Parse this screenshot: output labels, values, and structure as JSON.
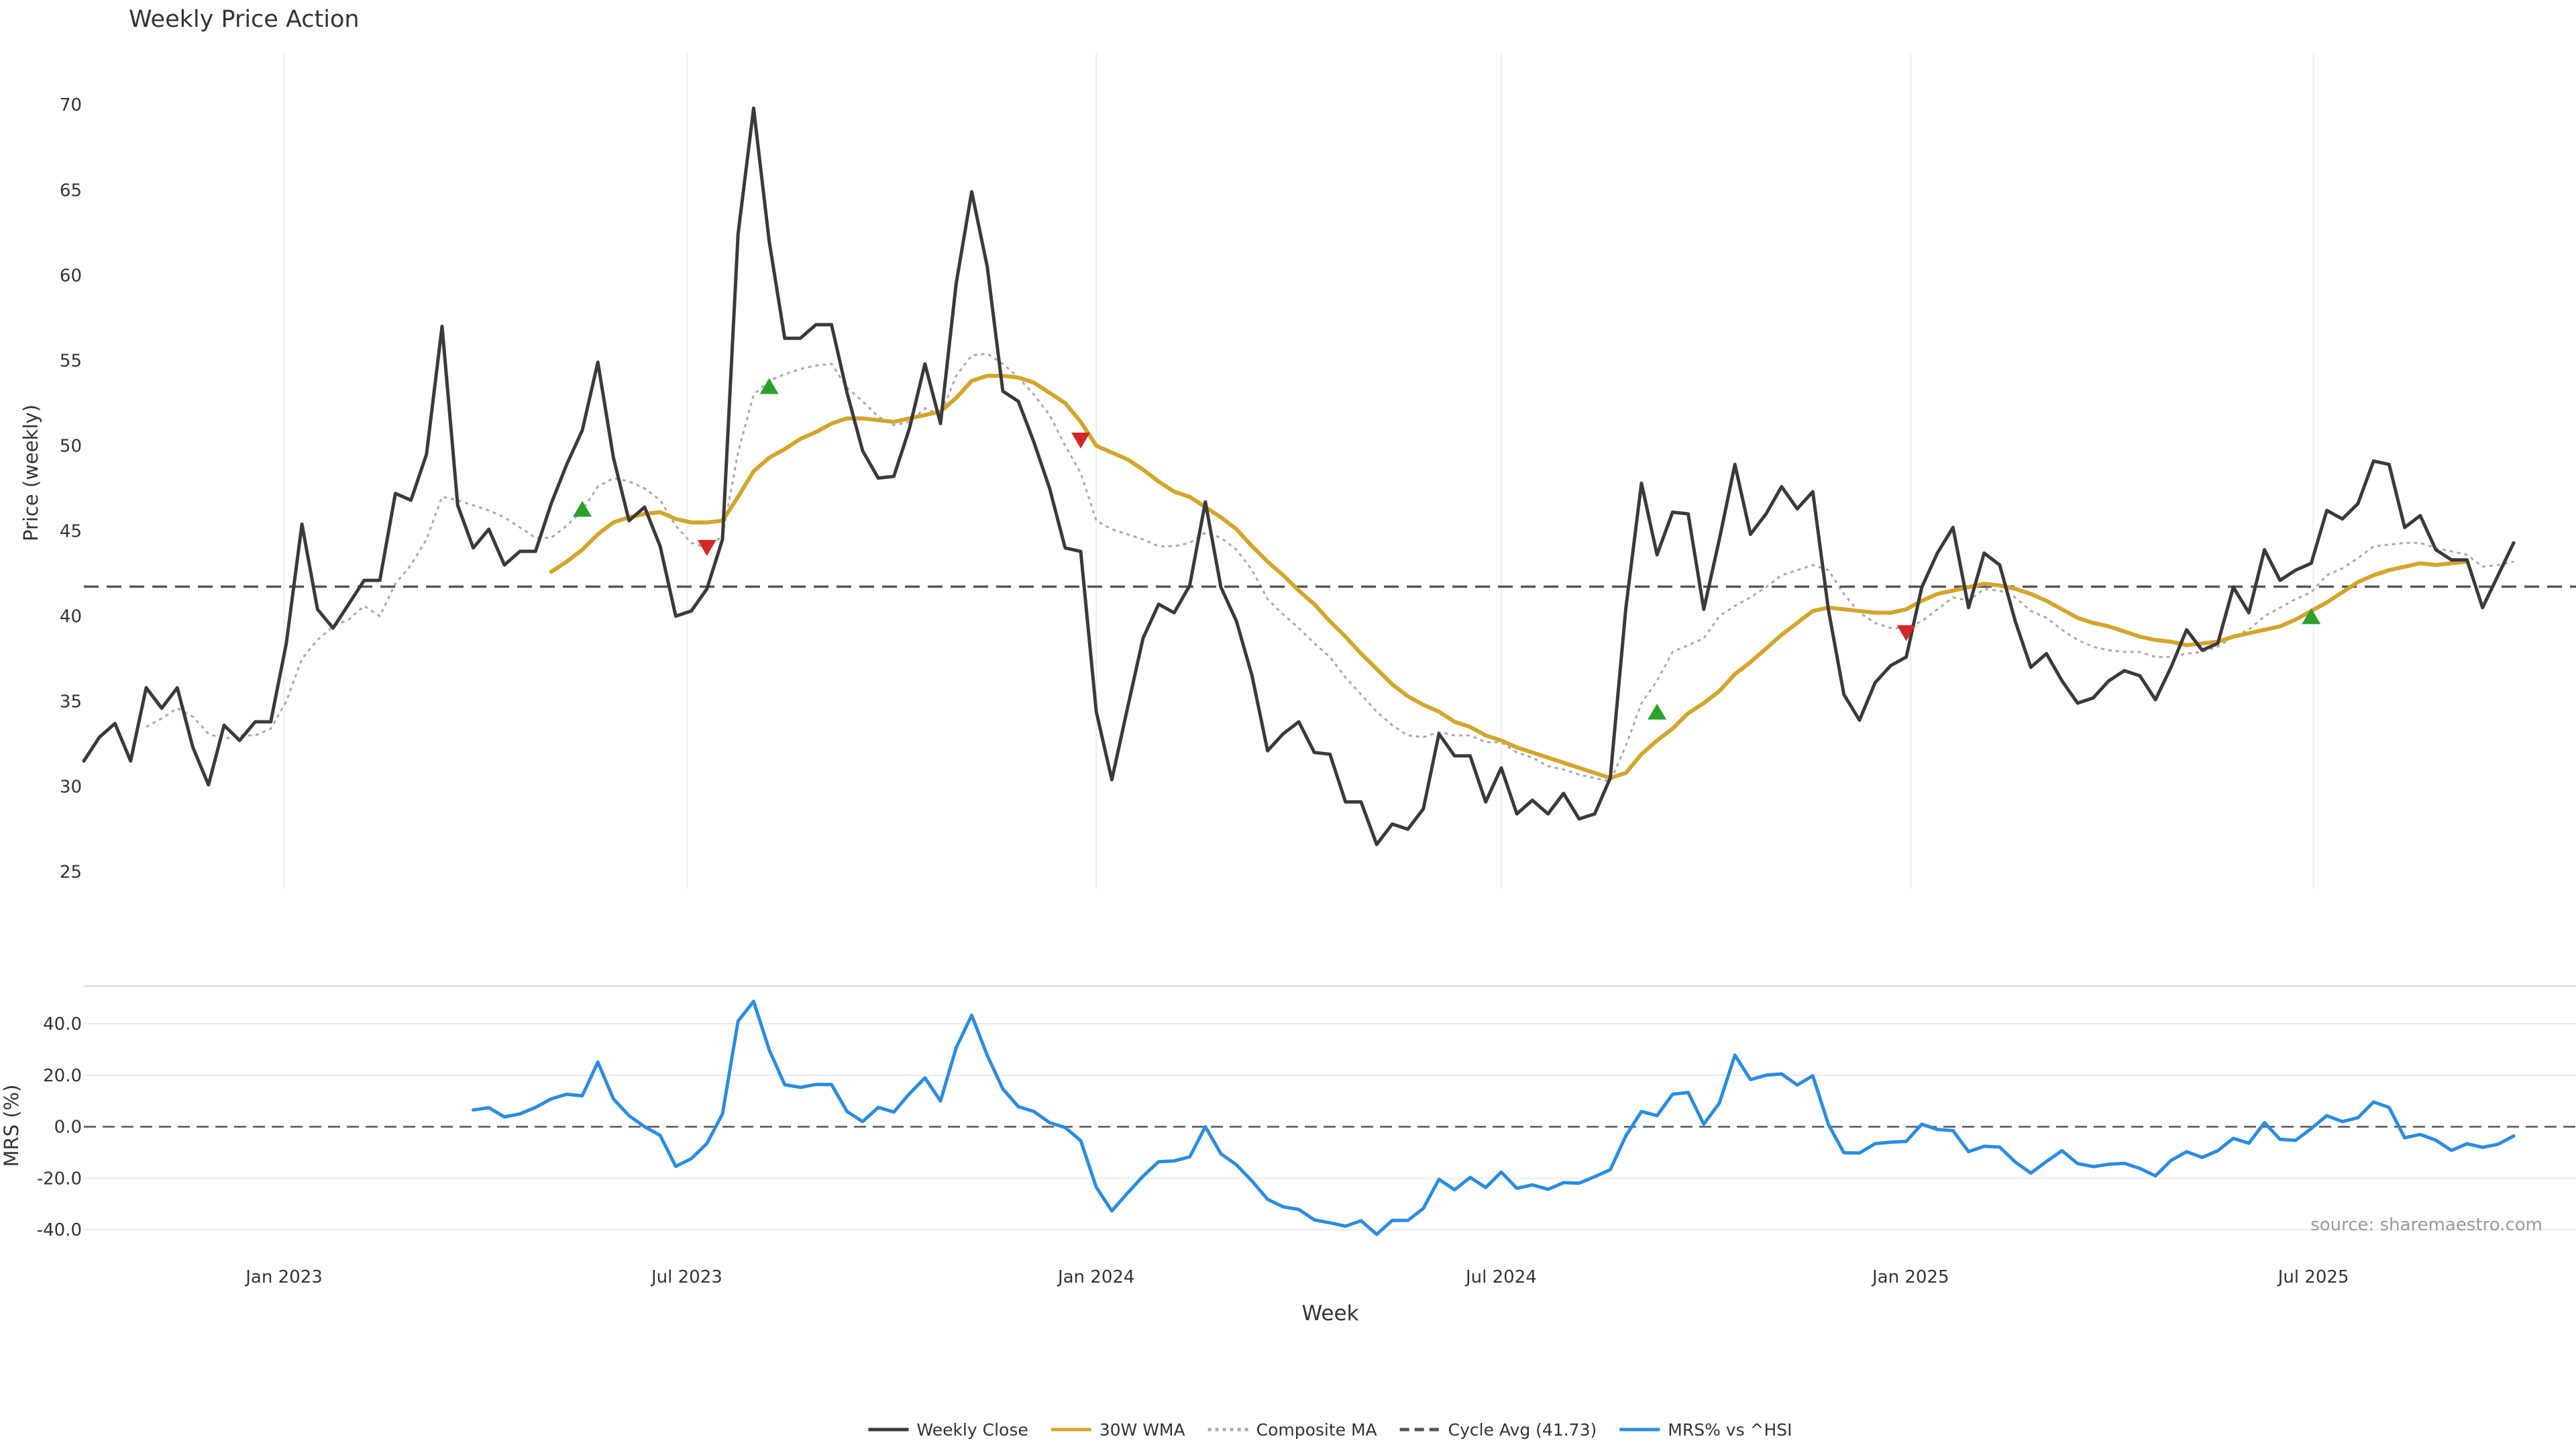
{
  "chart_data": [
    {
      "type": "line",
      "title": "Weekly Price Action",
      "xlabel": "",
      "ylabel": "Price (weekly)",
      "ylim": [
        24,
        73
      ],
      "yticks": [
        25,
        30,
        35,
        40,
        45,
        50,
        55,
        60,
        65,
        70
      ],
      "x_axis": {
        "type": "date",
        "start": "2022-10-03",
        "end": "2025-10-27",
        "step": "weekly",
        "tick_labels": [
          "Jan 2023",
          "Jul 2023",
          "Jan 2024",
          "Jul 2024",
          "Jan 2025",
          "Jul 2025"
        ],
        "tick_dates": [
          "2023-01-01",
          "2023-07-01",
          "2024-01-01",
          "2024-07-01",
          "2025-01-01",
          "2025-07-01"
        ]
      },
      "grid": "vertical",
      "series": [
        {
          "name": "Weekly Close",
          "color": "#3a3a3a",
          "style": "solid",
          "values": [
            31.5,
            32.9,
            33.7,
            31.5,
            35.8,
            34.6,
            35.8,
            32.3,
            30.1,
            33.6,
            32.7,
            33.8,
            33.8,
            38.4,
            45.4,
            40.4,
            39.3,
            40.7,
            42.1,
            42.1,
            47.2,
            46.8,
            49.5,
            57.0,
            46.5,
            44.0,
            45.1,
            43.0,
            43.8,
            43.8,
            46.6,
            48.9,
            50.9,
            54.9,
            49.3,
            45.6,
            46.4,
            44.1,
            40.0,
            40.3,
            41.6,
            44.5,
            62.4,
            69.8,
            62.0,
            56.3,
            56.3,
            57.1,
            57.1,
            53.1,
            49.7,
            48.1,
            48.2,
            51.0,
            54.8,
            51.3,
            59.5,
            64.9,
            60.5,
            53.2,
            52.6,
            50.2,
            47.5,
            44.0,
            43.8,
            34.4,
            30.4,
            34.6,
            38.7,
            40.7,
            40.2,
            41.8,
            46.7,
            41.7,
            39.7,
            36.5,
            32.1,
            33.1,
            33.8,
            32.0,
            31.9,
            29.1,
            29.1,
            26.6,
            27.8,
            27.5,
            28.7,
            33.1,
            31.8,
            31.8,
            29.1,
            31.1,
            28.4,
            29.2,
            28.4,
            29.6,
            28.1,
            28.4,
            30.5,
            40.5,
            47.8,
            43.6,
            46.1,
            46.0,
            40.4,
            44.5,
            48.9,
            44.8,
            46.0,
            47.6,
            46.3,
            47.3,
            40.4,
            35.4,
            33.9,
            36.1,
            37.1,
            37.6,
            41.7,
            43.7,
            45.2,
            40.5,
            43.7,
            43.0,
            39.7,
            37.0,
            37.8,
            36.2,
            34.9,
            35.2,
            36.2,
            36.8,
            36.5,
            35.1,
            37.0,
            39.2,
            38.0,
            38.4,
            41.7,
            40.2,
            43.9,
            42.1,
            42.7,
            43.1,
            46.2,
            45.7,
            46.6,
            49.1,
            48.9,
            45.2,
            45.9,
            43.9,
            43.3,
            43.3,
            40.5,
            42.4,
            44.3
          ]
        },
        {
          "name": "30W WMA",
          "color": "#d4a52c",
          "style": "solid",
          "values": [
            null,
            null,
            null,
            null,
            null,
            null,
            null,
            null,
            null,
            null,
            null,
            null,
            null,
            null,
            null,
            null,
            null,
            null,
            null,
            null,
            null,
            null,
            null,
            null,
            null,
            null,
            null,
            null,
            null,
            null,
            42.6,
            43.2,
            43.9,
            44.8,
            45.5,
            45.8,
            46.0,
            46.1,
            45.7,
            45.5,
            45.5,
            45.6,
            47.0,
            48.5,
            49.3,
            49.8,
            50.4,
            50.8,
            51.3,
            51.6,
            51.6,
            51.5,
            51.4,
            51.6,
            51.8,
            52.0,
            52.8,
            53.8,
            54.1,
            54.1,
            54.0,
            53.7,
            53.1,
            52.5,
            51.4,
            50.0,
            49.6,
            49.2,
            48.6,
            47.9,
            47.3,
            47.0,
            46.4,
            45.8,
            45.1,
            44.1,
            43.2,
            42.4,
            41.5,
            40.7,
            39.7,
            38.8,
            37.8,
            36.9,
            36.0,
            35.3,
            34.8,
            34.4,
            33.8,
            33.5,
            33.0,
            32.7,
            32.3,
            32.0,
            31.7,
            31.4,
            31.1,
            30.8,
            30.5,
            30.8,
            31.9,
            32.7,
            33.4,
            34.3,
            34.9,
            35.6,
            36.6,
            37.3,
            38.1,
            38.9,
            39.6,
            40.3,
            40.5,
            40.4,
            40.3,
            40.2,
            40.2,
            40.4,
            40.9,
            41.3,
            41.5,
            41.7,
            41.9,
            41.8,
            41.6,
            41.3,
            40.9,
            40.4,
            39.9,
            39.6,
            39.4,
            39.1,
            38.8,
            38.6,
            38.5,
            38.3,
            38.4,
            38.5,
            38.8,
            39.0,
            39.2,
            39.4,
            39.8,
            40.3,
            40.8,
            41.4,
            42.0,
            42.4,
            42.7,
            42.9,
            43.1,
            43.0,
            43.1,
            43.2
          ]
        },
        {
          "name": "Composite MA",
          "color": "#aaaaaa",
          "style": "dotted",
          "values": [
            null,
            null,
            null,
            null,
            33.5,
            34.0,
            34.6,
            34.1,
            33.1,
            32.8,
            33.0,
            33.0,
            33.4,
            35.0,
            37.5,
            38.6,
            39.4,
            39.8,
            40.6,
            40.0,
            41.9,
            43.0,
            44.5,
            47.0,
            46.8,
            46.5,
            46.2,
            45.8,
            45.2,
            44.6,
            44.6,
            45.3,
            46.2,
            47.6,
            48.1,
            47.9,
            47.5,
            46.8,
            45.3,
            44.3,
            44.0,
            44.7,
            49.6,
            53.0,
            53.8,
            54.2,
            54.5,
            54.7,
            54.8,
            53.4,
            52.6,
            51.7,
            51.2,
            51.4,
            52.2,
            51.8,
            54.1,
            55.3,
            55.4,
            54.8,
            54.0,
            53.0,
            51.8,
            50.0,
            48.4,
            45.6,
            45.1,
            44.8,
            44.5,
            44.1,
            44.1,
            44.3,
            44.9,
            44.6,
            43.9,
            42.7,
            41.0,
            40.1,
            39.3,
            38.4,
            37.6,
            36.4,
            35.4,
            34.4,
            33.6,
            33.0,
            32.9,
            33.2,
            33.0,
            33.0,
            32.6,
            32.6,
            32.0,
            31.7,
            31.2,
            31.0,
            30.7,
            30.5,
            30.3,
            32.4,
            34.9,
            36.2,
            37.9,
            38.3,
            38.7,
            40.0,
            40.6,
            41.1,
            41.7,
            42.4,
            42.7,
            43.0,
            42.7,
            41.3,
            40.2,
            39.6,
            39.3,
            39.3,
            39.7,
            40.4,
            41.1,
            40.9,
            41.6,
            41.5,
            41.1,
            40.3,
            39.9,
            39.2,
            38.6,
            38.2,
            38.0,
            37.9,
            37.9,
            37.6,
            37.6,
            37.8,
            37.9,
            38.2,
            38.8,
            39.2,
            40.0,
            40.5,
            41.0,
            41.4,
            42.4,
            42.8,
            43.4,
            44.1,
            44.2,
            44.3,
            44.3,
            44.0,
            43.8,
            43.6,
            42.9,
            43.0,
            43.2
          ]
        },
        {
          "name": "Cycle Avg (41.73)",
          "color": "#555555",
          "style": "dashed",
          "constant": 41.73
        }
      ],
      "markers": [
        {
          "type": "buy",
          "shape": "triangle-up",
          "color": "#2ca02c",
          "x": 32,
          "y": 46.3
        },
        {
          "type": "sell",
          "shape": "triangle-down",
          "color": "#d62728",
          "x": 40,
          "y": 44.0
        },
        {
          "type": "buy",
          "shape": "triangle-up",
          "color": "#2ca02c",
          "x": 44,
          "y": 53.5
        },
        {
          "type": "sell",
          "shape": "triangle-down",
          "color": "#d62728",
          "x": 64,
          "y": 50.3
        },
        {
          "type": "buy",
          "shape": "triangle-up",
          "color": "#2ca02c",
          "x": 101,
          "y": 34.4
        },
        {
          "type": "sell",
          "shape": "triangle-down",
          "color": "#d62728",
          "x": 117,
          "y": 39.0
        },
        {
          "type": "buy",
          "shape": "triangle-up",
          "color": "#2ca02c",
          "x": 143,
          "y": 40.0
        }
      ]
    },
    {
      "type": "line",
      "title": "",
      "xlabel": "Week",
      "ylabel": "MRS (%)",
      "ylim": [
        -47,
        52
      ],
      "yticks": [
        -40,
        -20,
        0,
        20,
        40
      ],
      "ytick_labels": [
        "-40.0",
        "-20.0",
        "0.0",
        "20.0",
        "40.0"
      ],
      "grid": "horizontal",
      "reference_line": {
        "value": 0,
        "style": "dashed",
        "color": "#555555"
      },
      "annotation": "source: sharemaestro.com",
      "series": [
        {
          "name": "MRS% vs ^HSI",
          "color": "#2b8cdf",
          "style": "solid",
          "values": [
            null,
            null,
            null,
            null,
            null,
            null,
            null,
            null,
            null,
            null,
            null,
            null,
            null,
            null,
            null,
            null,
            null,
            null,
            null,
            null,
            null,
            null,
            null,
            null,
            null,
            6.5,
            7.4,
            3.8,
            5.0,
            7.5,
            10.8,
            12.6,
            12.0,
            25.1,
            10.8,
            4.3,
            0.0,
            -3.4,
            -15.4,
            -12.4,
            -6.5,
            5.0,
            41.0,
            48.7,
            29.9,
            16.3,
            15.3,
            16.4,
            16.4,
            5.9,
            2.0,
            7.5,
            5.7,
            12.8,
            19.0,
            10.0,
            30.6,
            43.3,
            27.7,
            14.7,
            7.8,
            5.9,
            1.6,
            -0.3,
            -5.4,
            -23.5,
            -32.7,
            -25.8,
            -19.2,
            -13.6,
            -13.3,
            -11.7,
            0.0,
            -10.5,
            -14.8,
            -21.1,
            -28.2,
            -31.1,
            -32.1,
            -36.2,
            -37.3,
            -38.6,
            -36.5,
            -41.8,
            -36.4,
            -36.4,
            -31.7,
            -20.4,
            -24.5,
            -19.7,
            -23.6,
            -17.6,
            -23.9,
            -22.6,
            -24.3,
            -21.7,
            -21.9,
            -19.4,
            -16.7,
            -3.5,
            5.9,
            4.3,
            12.6,
            13.3,
            1.0,
            9.2,
            27.8,
            18.3,
            20.0,
            20.5,
            16.2,
            19.8,
            0.9,
            -10.1,
            -10.2,
            -6.6,
            -6.0,
            -5.7,
            1.0,
            -1.1,
            -1.5,
            -9.7,
            -7.6,
            -7.9,
            -13.7,
            -18.0,
            -13.5,
            -9.3,
            -14.3,
            -15.5,
            -14.6,
            -14.2,
            -16.2,
            -19.1,
            -13.1,
            -9.7,
            -11.9,
            -9.3,
            -4.5,
            -6.4,
            1.6,
            -4.9,
            -5.3,
            -0.7,
            4.3,
            2.0,
            3.5,
            9.6,
            7.5,
            -4.3,
            -3.0,
            -5.2,
            -9.2,
            -6.6,
            -8.0,
            -6.8,
            -3.6
          ]
        }
      ]
    }
  ],
  "x_axis": {
    "tick_labels": [
      "Jan 2023",
      "Jul 2023",
      "Jan 2024",
      "Jul 2024",
      "Jan 2025",
      "Jul 2025"
    ],
    "label": "Week"
  },
  "legend": {
    "placement": "bottom-center",
    "items": [
      {
        "label": "Weekly Close",
        "color": "#3a3a3a",
        "style": "solid"
      },
      {
        "label": "30W WMA",
        "color": "#d4a52c",
        "style": "solid"
      },
      {
        "label": "Composite MA",
        "color": "#aaaaaa",
        "style": "dotted"
      },
      {
        "label": "Cycle Avg (41.73)",
        "color": "#555555",
        "style": "dashed"
      },
      {
        "label": "MRS% vs ^HSI",
        "color": "#2b8cdf",
        "style": "solid"
      }
    ]
  }
}
